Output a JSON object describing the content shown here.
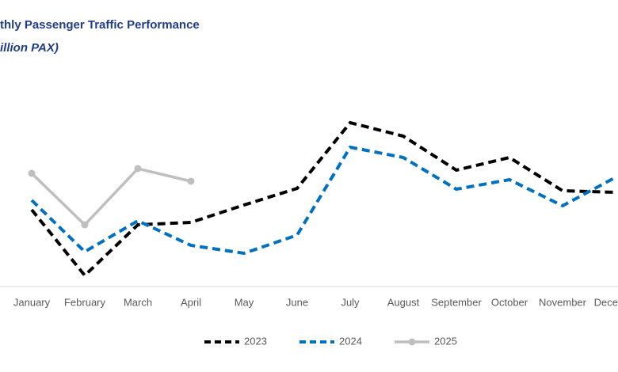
{
  "chart_data": {
    "type": "line",
    "title": "thly Passenger Traffic Performance",
    "subtitle": "illion PAX)",
    "categories": [
      "January",
      "February",
      "March",
      "April",
      "May",
      "June",
      "July",
      "August",
      "September",
      "October",
      "November",
      "Dece"
    ],
    "series": [
      {
        "name": "2023",
        "color": "#000000",
        "dash": true,
        "values": [
          9.7,
          1.4,
          7.8,
          8.1,
          10.3,
          12.4,
          20.7,
          19.0,
          14.7,
          16.3,
          12.1,
          11.9
        ]
      },
      {
        "name": "2024",
        "color": "#0070c0",
        "dash": true,
        "values": [
          10.9,
          4.4,
          8.3,
          5.2,
          4.2,
          6.5,
          17.6,
          16.3,
          12.3,
          13.5,
          10.2,
          13.8
        ]
      },
      {
        "name": "2025",
        "color": "#bfbfbf",
        "dash": false,
        "values": [
          14.3,
          7.8,
          14.9,
          13.3,
          null,
          null,
          null,
          null,
          null,
          null,
          null,
          null
        ]
      }
    ],
    "legend": "bottom"
  }
}
